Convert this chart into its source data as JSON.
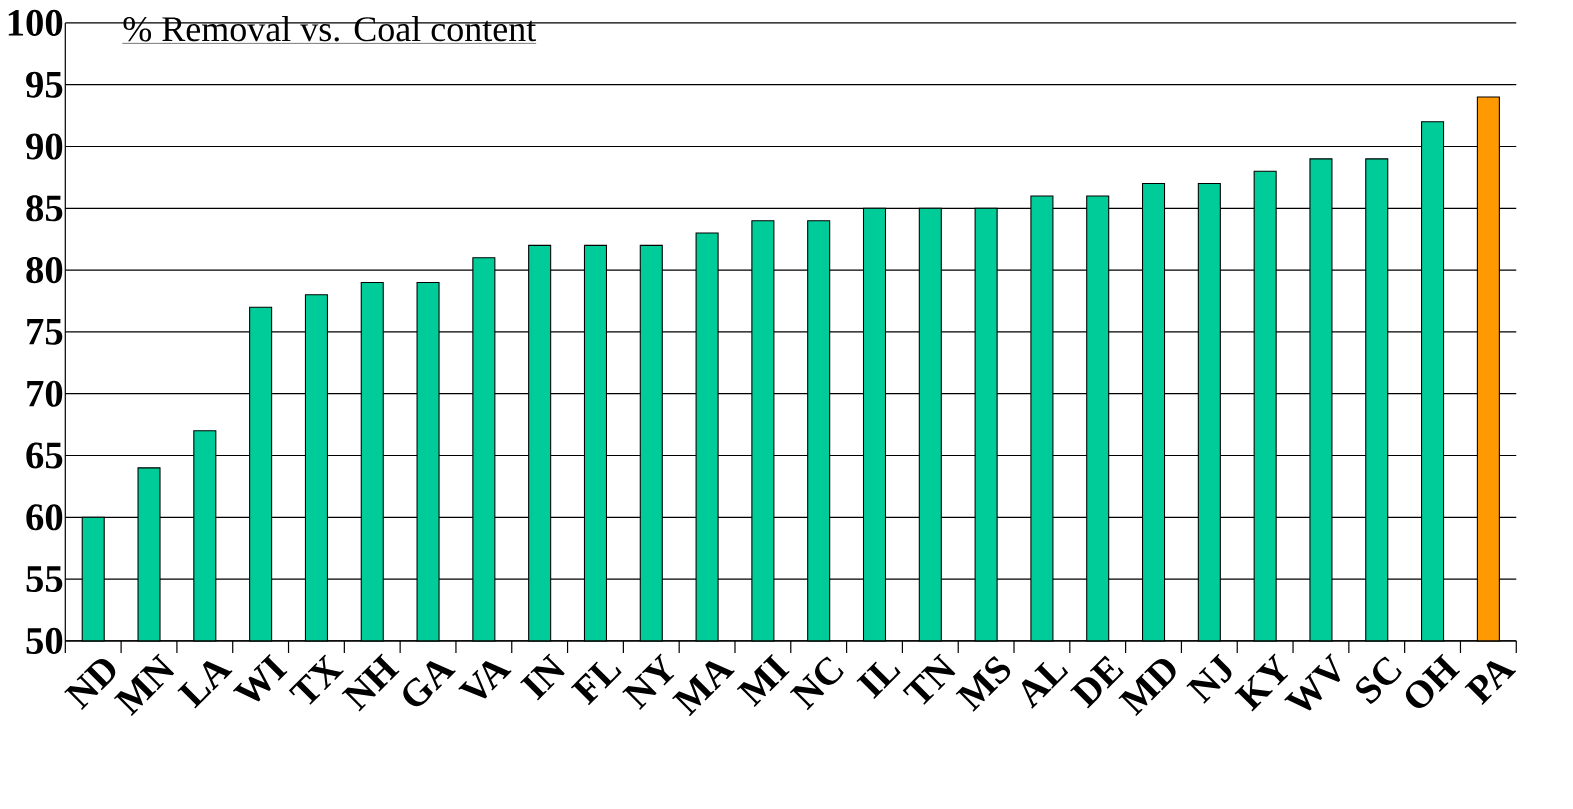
{
  "chart_data": {
    "type": "bar",
    "title": "% Removal vs. Coal content",
    "categories": [
      "ND",
      "MN",
      "LA",
      "WI",
      "TX",
      "NH",
      "GA",
      "VA",
      "IN",
      "FL",
      "NY",
      "MA",
      "MI",
      "NC",
      "IL",
      "TN",
      "MS",
      "AL",
      "DE",
      "MD",
      "NJ",
      "KY",
      "WV",
      "SC",
      "OH",
      "PA"
    ],
    "values": [
      60,
      64,
      67,
      77,
      78,
      79,
      79,
      81,
      82,
      82,
      82,
      83,
      84,
      84,
      85,
      85,
      85,
      86,
      86,
      87,
      87,
      88,
      89,
      89,
      92,
      94
    ],
    "colors": [
      "#00cc99",
      "#00cc99",
      "#00cc99",
      "#00cc99",
      "#00cc99",
      "#00cc99",
      "#00cc99",
      "#00cc99",
      "#00cc99",
      "#00cc99",
      "#00cc99",
      "#00cc99",
      "#00cc99",
      "#00cc99",
      "#00cc99",
      "#00cc99",
      "#00cc99",
      "#00cc99",
      "#00cc99",
      "#00cc99",
      "#00cc99",
      "#00cc99",
      "#00cc99",
      "#00cc99",
      "#00cc99",
      "#ff9900"
    ],
    "ylim": [
      50,
      100
    ],
    "yticks": [
      50,
      55,
      60,
      65,
      70,
      75,
      80,
      85,
      90,
      95,
      100
    ],
    "grid": "y"
  }
}
